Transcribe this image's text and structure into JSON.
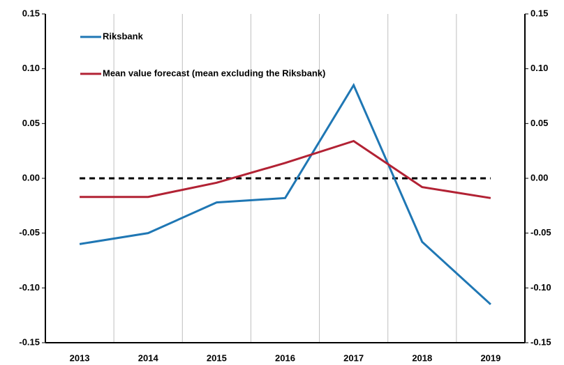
{
  "chart_data": {
    "type": "line",
    "categories": [
      "2013",
      "2014",
      "2015",
      "2016",
      "2017",
      "2018",
      "2019"
    ],
    "series": [
      {
        "name": "Riksbank",
        "color": "#1f77b4",
        "values": [
          -0.06,
          -0.05,
          -0.022,
          -0.018,
          0.085,
          -0.058,
          -0.115
        ]
      },
      {
        "name": "Mean value forecast (mean excluding the Riksbank)",
        "color": "#b22234",
        "values": [
          -0.017,
          -0.017,
          -0.004,
          0.014,
          0.034,
          -0.008,
          -0.018
        ]
      }
    ],
    "ylim": [
      -0.15,
      0.15
    ],
    "yticks": [
      -0.15,
      {
        "value": -0.1,
        "label": "-0.10"
      },
      -0.05,
      {
        "value": 0,
        "label": "0.00"
      },
      0.05,
      {
        "value": 0.1,
        "label": "0.10"
      },
      0.15
    ],
    "y2lim": [
      -0.15,
      0.15
    ],
    "y2ticks": [
      -0.15,
      {
        "value": -0.1,
        "label": "-0.10"
      },
      -0.05,
      {
        "value": 0,
        "label": "0.00"
      },
      0.05,
      {
        "value": 0.1,
        "label": "0.10"
      },
      0.15
    ],
    "reference_line": 0,
    "legend": "upper left"
  }
}
